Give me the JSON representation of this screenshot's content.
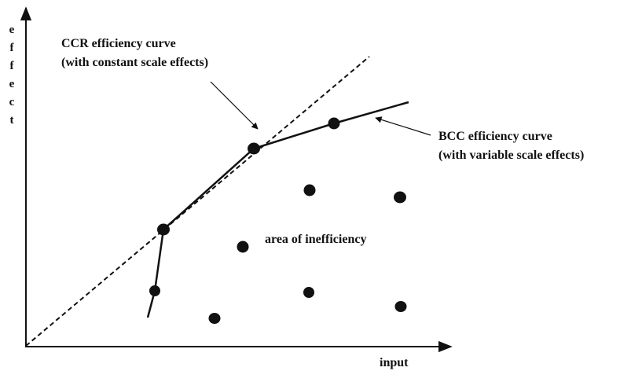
{
  "axes": {
    "y_label": "effect",
    "x_label": "input"
  },
  "ccr_annotation": {
    "title": "CCR efficiency curve",
    "subtitle": "(with constant scale effects)"
  },
  "bcc_annotation": {
    "title": "BCC efficiency curve",
    "subtitle": "(with variable scale effects)"
  },
  "area_label": "area of inefficiency"
}
